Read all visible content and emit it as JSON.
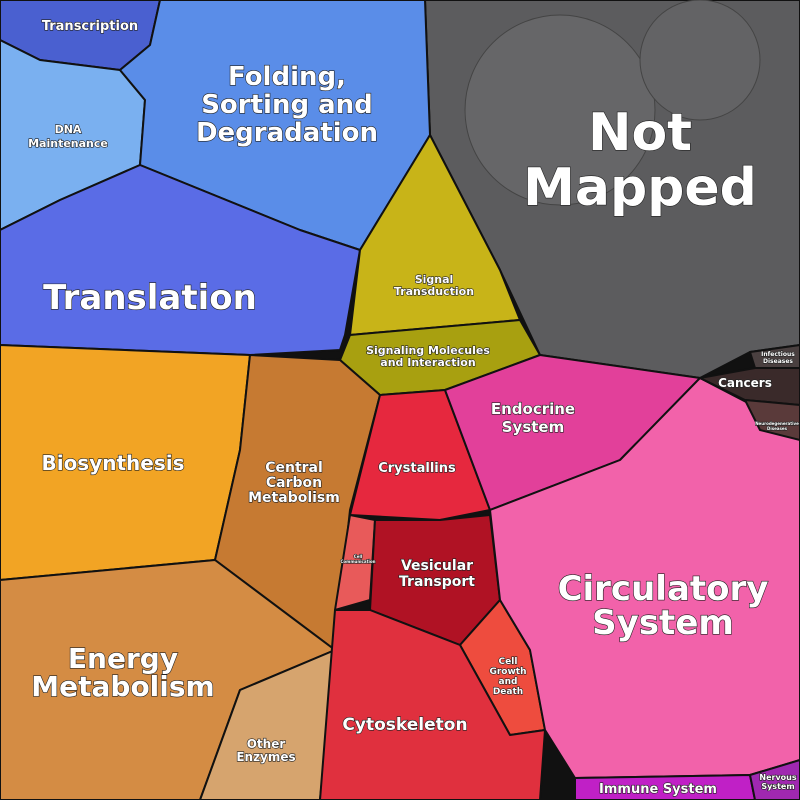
{
  "regions": [
    {
      "label": [
        "Not",
        "Mapped"
      ]
    },
    {
      "label": [
        "Transcription"
      ]
    },
    {
      "label": [
        "DNA",
        "Maintenance"
      ]
    },
    {
      "label": [
        "Folding,",
        "Sorting and",
        "Degradation"
      ]
    },
    {
      "label": [
        "Translation"
      ]
    },
    {
      "label": [
        "Signal",
        "Transduction"
      ]
    },
    {
      "label": [
        "Signaling Molecules",
        "and Interaction"
      ]
    },
    {
      "label": [
        "Biosynthesis"
      ]
    },
    {
      "label": [
        "Central",
        "Carbon",
        "Metabolism"
      ]
    },
    {
      "label": [
        "Energy",
        "Metabolism"
      ]
    },
    {
      "label": [
        "Other",
        "Enzymes"
      ]
    },
    {
      "label": [
        "Crystallins"
      ]
    },
    {
      "label": [
        "Cell",
        "Communication"
      ]
    },
    {
      "label": [
        "Vesicular",
        "Transport"
      ]
    },
    {
      "label": [
        "Cell",
        "Growth",
        "and",
        "Death"
      ]
    },
    {
      "label": [
        "Cytoskeleton"
      ]
    },
    {
      "label": [
        "Endocrine",
        "System"
      ]
    },
    {
      "label": [
        "Circulatory",
        "System"
      ]
    },
    {
      "label": [
        "Infectious",
        "Diseases"
      ]
    },
    {
      "label": [
        "Cancers"
      ]
    },
    {
      "label": [
        "Neurodegenerative",
        "Diseases"
      ]
    },
    {
      "label": [
        "Immune System"
      ]
    },
    {
      "label": [
        "Nervous",
        "System"
      ]
    }
  ]
}
